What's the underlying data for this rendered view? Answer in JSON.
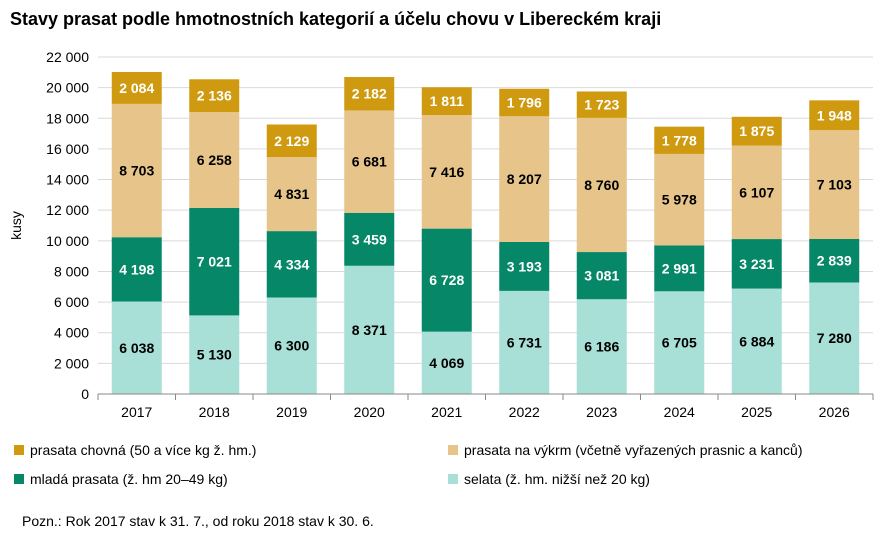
{
  "title": "Stavy prasat podle hmotnostních kategorií a účelu chovu v Libereckém kraji",
  "note": "Pozn.: Rok 2017 stav k 31. 7., od roku  2018 stav k 30. 6.",
  "chart_data": {
    "type": "bar",
    "stacked": true,
    "categories": [
      "2017",
      "2018",
      "2019",
      "2020",
      "2021",
      "2022",
      "2023",
      "2024",
      "2025",
      "2026"
    ],
    "ylabel": "kusy",
    "xlabel": "",
    "ylim": [
      0,
      22000
    ],
    "yticks": [
      0,
      2000,
      4000,
      6000,
      8000,
      10000,
      12000,
      14000,
      16000,
      18000,
      20000,
      22000
    ],
    "ytick_labels": [
      "0",
      "2 000",
      "4 000",
      "6 000",
      "8 000",
      "10 000",
      "12 000",
      "14 000",
      "16 000",
      "18 000",
      "20 000",
      "22 000"
    ],
    "grid": true,
    "legend_position": "bottom",
    "series": [
      {
        "name": "selata (ž. hm. nižší než 20 kg)",
        "color": "#a8dfd6",
        "label_color": "#000000",
        "values": [
          6038,
          5130,
          6300,
          8371,
          4069,
          6731,
          6186,
          6705,
          6884,
          7280
        ],
        "labels": [
          "6 038",
          "5 130",
          "6 300",
          "8 371",
          "4 069",
          "6 731",
          "6 186",
          "6 705",
          "6 884",
          "7 280"
        ]
      },
      {
        "name": "mladá prasata (ž. hm 20–49 kg)",
        "color": "#068868",
        "label_color": "#ffffff",
        "values": [
          4198,
          7021,
          4334,
          3459,
          6728,
          3193,
          3081,
          2991,
          3231,
          2839
        ],
        "labels": [
          "4 198",
          "7 021",
          "4 334",
          "3 459",
          "6 728",
          "3 193",
          "3 081",
          "2 991",
          "3 231",
          "2 839"
        ]
      },
      {
        "name": "prasata na výkrm (včetně vyřazených prasnic a kanců)",
        "color": "#e6c48a",
        "label_color": "#000000",
        "values": [
          8703,
          6258,
          4831,
          6681,
          7416,
          8207,
          8760,
          5978,
          6107,
          7103
        ],
        "labels": [
          "8 703",
          "6 258",
          "4 831",
          "6 681",
          "7 416",
          "8 207",
          "8 760",
          "5 978",
          "6 107",
          "7 103"
        ]
      },
      {
        "name": "prasata chovná (50 a více kg ž. hm.)",
        "color": "#cf9a10",
        "label_color": "#ffffff",
        "values": [
          2084,
          2136,
          2129,
          2182,
          1811,
          1796,
          1723,
          1778,
          1875,
          1948
        ],
        "labels": [
          "2 084",
          "2 136",
          "2 129",
          "2 182",
          "1 811",
          "1 796",
          "1 723",
          "1 778",
          "1 875",
          "1 948"
        ]
      }
    ]
  },
  "legend": [
    {
      "label": "prasata chovná (50 a více kg ž. hm.)",
      "color": "#cf9a10"
    },
    {
      "label": "prasata na výkrm (včetně vyřazených prasnic a kanců)",
      "color": "#e6c48a"
    },
    {
      "label": "mladá prasata (ž. hm 20–49 kg)",
      "color": "#068868"
    },
    {
      "label": "selata (ž. hm. nižší než 20 kg)",
      "color": "#a8dfd6"
    }
  ]
}
